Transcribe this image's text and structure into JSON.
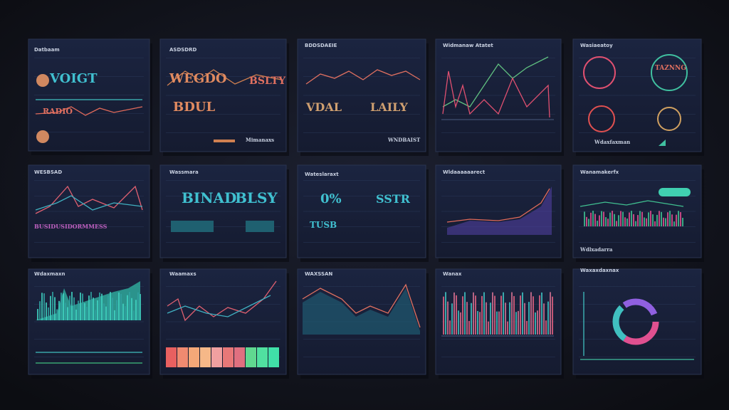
{
  "cards": [
    {
      "title": "Datbaam",
      "texts": [
        "VOIGT",
        "RADIO"
      ]
    },
    {
      "title": "ASDSDRD",
      "texts": [
        "WEGDO",
        "BDUL",
        "BSLTY",
        "Mimanaxs"
      ]
    },
    {
      "title": "BDDSDAEIE",
      "texts": [
        "VDAL",
        "LAILY",
        "WNDBAIST"
      ]
    },
    {
      "title": "Widmanaw Atatet",
      "texts": []
    },
    {
      "title": "Wasiaeatoy",
      "texts": [
        "TAZNNG",
        "Wdaxfaxman"
      ]
    },
    {
      "title": "WESBSAD",
      "texts": [
        "BUSIDUSIDORMMESS"
      ]
    },
    {
      "title": "Wassmara",
      "texts": [
        "BINAD",
        "BLSY"
      ]
    },
    {
      "title": "Wateslaraxt",
      "texts": [
        "0%",
        "SSTR",
        "TUSB"
      ]
    },
    {
      "title": "Wldaaaaaarect",
      "texts": []
    },
    {
      "title": "Wanamakerfx",
      "texts": [
        "Wdlxadarra"
      ]
    },
    {
      "title": "Wdaxmaxn",
      "texts": []
    },
    {
      "title": "Waamaxs",
      "texts": []
    },
    {
      "title": "WAXSSAN",
      "texts": []
    },
    {
      "title": "Wanax",
      "texts": []
    },
    {
      "title": "Waxaxdaxnax",
      "texts": []
    }
  ]
}
